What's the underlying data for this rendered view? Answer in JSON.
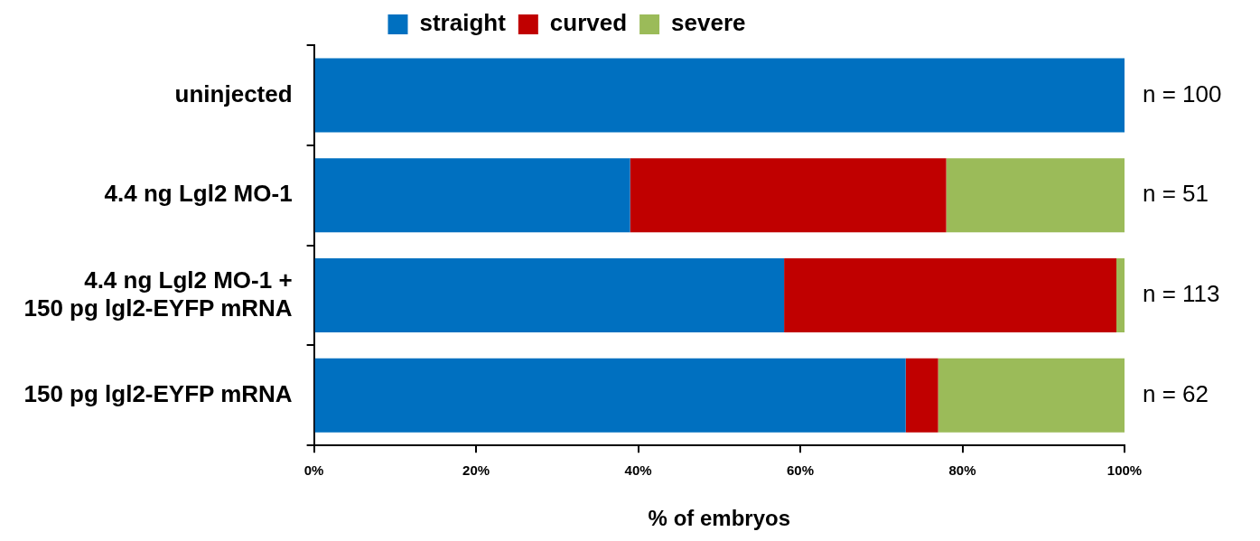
{
  "chart_data": {
    "type": "bar",
    "orientation": "horizontal",
    "stacked": true,
    "categories": [
      "uninjected",
      "4.4 ng Lgl2 MO-1",
      "4.4 ng Lgl2 MO-1 +\n150 pg lgl2-EYFP mRNA",
      "150 pg lgl2-EYFP mRNA"
    ],
    "series": [
      {
        "name": "straight",
        "color": "#0070c0",
        "values": [
          100,
          39,
          58,
          73
        ]
      },
      {
        "name": "curved",
        "color": "#c00000",
        "values": [
          0,
          39,
          41,
          4
        ]
      },
      {
        "name": "severe",
        "color": "#9bbb59",
        "values": [
          0,
          22,
          1,
          23
        ]
      }
    ],
    "xlim": [
      0,
      100
    ],
    "xticks": [
      {
        "value": 0,
        "label": "0%"
      },
      {
        "value": 20,
        "label": "20%"
      },
      {
        "value": 40,
        "label": "40%"
      },
      {
        "value": 60,
        "label": "60%"
      },
      {
        "value": 80,
        "label": "80%"
      },
      {
        "value": 100,
        "label": "100%"
      }
    ],
    "xlabel": "% of embryos",
    "legend": "top",
    "grid": false,
    "annotations": [
      "n = 100",
      "n = 51",
      "n = 113",
      "n = 62"
    ]
  }
}
